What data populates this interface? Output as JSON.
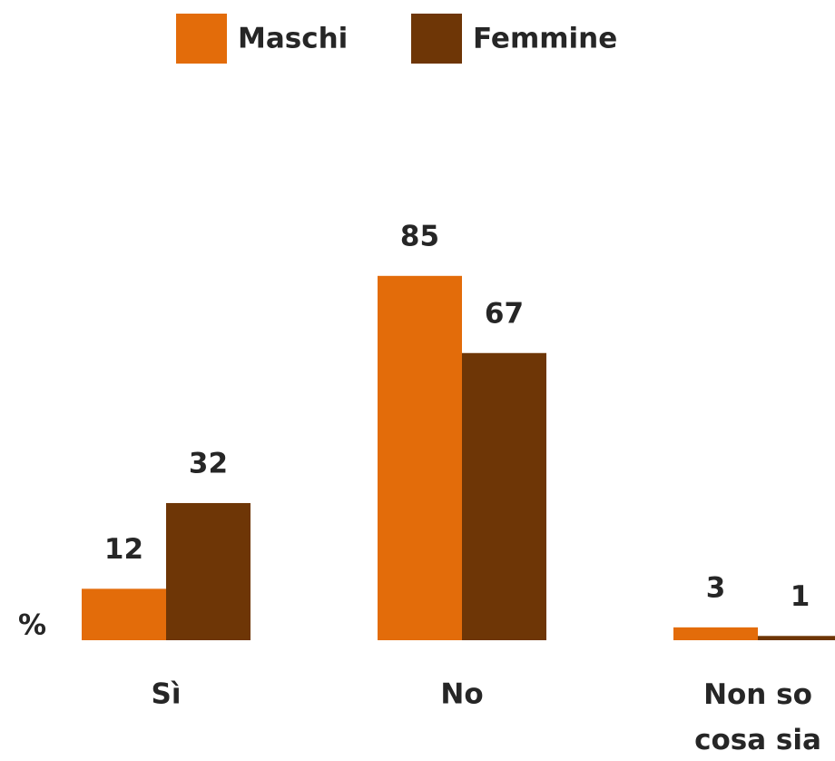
{
  "chart_data": {
    "type": "bar",
    "y_label": "%",
    "categories": [
      "Sì",
      "No",
      "Non so\ncosa sia"
    ],
    "series": [
      {
        "name": "Maschi",
        "color": "#e36c0a",
        "values": [
          12,
          85,
          3
        ]
      },
      {
        "name": "Femmine",
        "color": "#6e3606",
        "values": [
          32,
          67,
          1
        ]
      }
    ],
    "ylim": [
      0,
      100
    ]
  }
}
